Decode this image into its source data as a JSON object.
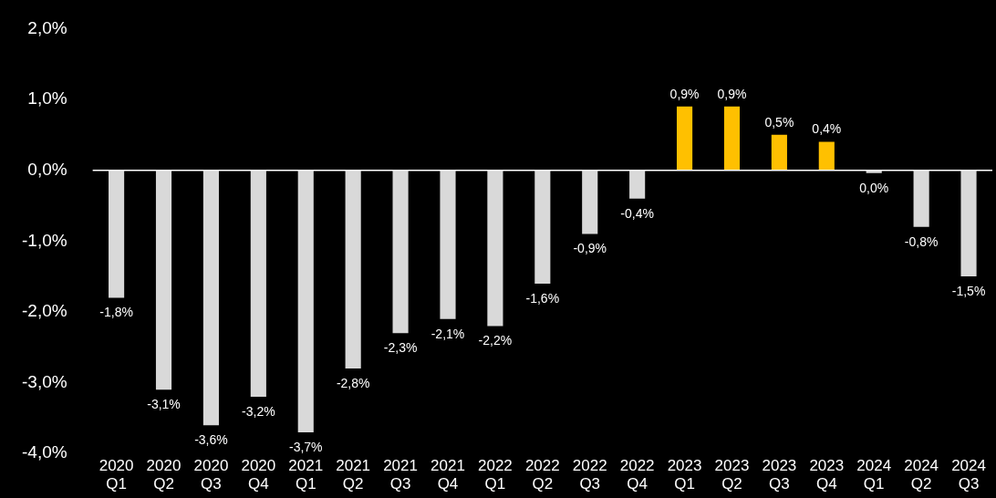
{
  "chart_data": {
    "type": "bar",
    "categories": [
      "2020 Q1",
      "2020 Q2",
      "2020 Q3",
      "2020 Q4",
      "2021 Q1",
      "2021 Q2",
      "2021 Q3",
      "2021 Q4",
      "2022 Q1",
      "2022 Q2",
      "2022 Q3",
      "2022 Q4",
      "2023 Q1",
      "2023 Q2",
      "2023 Q3",
      "2023 Q4",
      "2024 Q1",
      "2024 Q2",
      "2024 Q3"
    ],
    "values": [
      -1.8,
      -3.1,
      -3.6,
      -3.2,
      -3.7,
      -2.8,
      -2.3,
      -2.1,
      -2.2,
      -1.6,
      -0.9,
      -0.4,
      0.9,
      0.9,
      0.5,
      0.4,
      -0.04,
      -0.8,
      -1.5
    ],
    "value_labels": [
      "-1,8%",
      "-3,1%",
      "-3,6%",
      "-3,2%",
      "-3,7%",
      "-2,8%",
      "-2,3%",
      "-2,1%",
      "-2,2%",
      "-1,6%",
      "-0,9%",
      "-0,4%",
      "0,9%",
      "0,9%",
      "0,5%",
      "0,4%",
      "0,0%",
      "-0,8%",
      "-1,5%"
    ],
    "colors": [
      "#d9d9d9",
      "#d9d9d9",
      "#d9d9d9",
      "#d9d9d9",
      "#d9d9d9",
      "#d9d9d9",
      "#d9d9d9",
      "#d9d9d9",
      "#d9d9d9",
      "#d9d9d9",
      "#d9d9d9",
      "#d9d9d9",
      "#ffc000",
      "#ffc000",
      "#ffc000",
      "#ffc000",
      "#d9d9d9",
      "#d9d9d9",
      "#d9d9d9"
    ],
    "ylim": [
      -4,
      2
    ],
    "yticks": [
      {
        "value": -4,
        "label": "-4,0%"
      },
      {
        "value": -3,
        "label": "-3,0%"
      },
      {
        "value": -2,
        "label": "-2,0%"
      },
      {
        "value": -1,
        "label": "-1,0%"
      },
      {
        "value": 0,
        "label": "0,0%"
      },
      {
        "value": 1,
        "label": "1,0%"
      },
      {
        "value": 2,
        "label": "2,0%"
      }
    ],
    "ref_lines": [
      {
        "axis": "y",
        "value": 0,
        "color": "#ffffff"
      }
    ],
    "grid": false,
    "legend": false
  }
}
